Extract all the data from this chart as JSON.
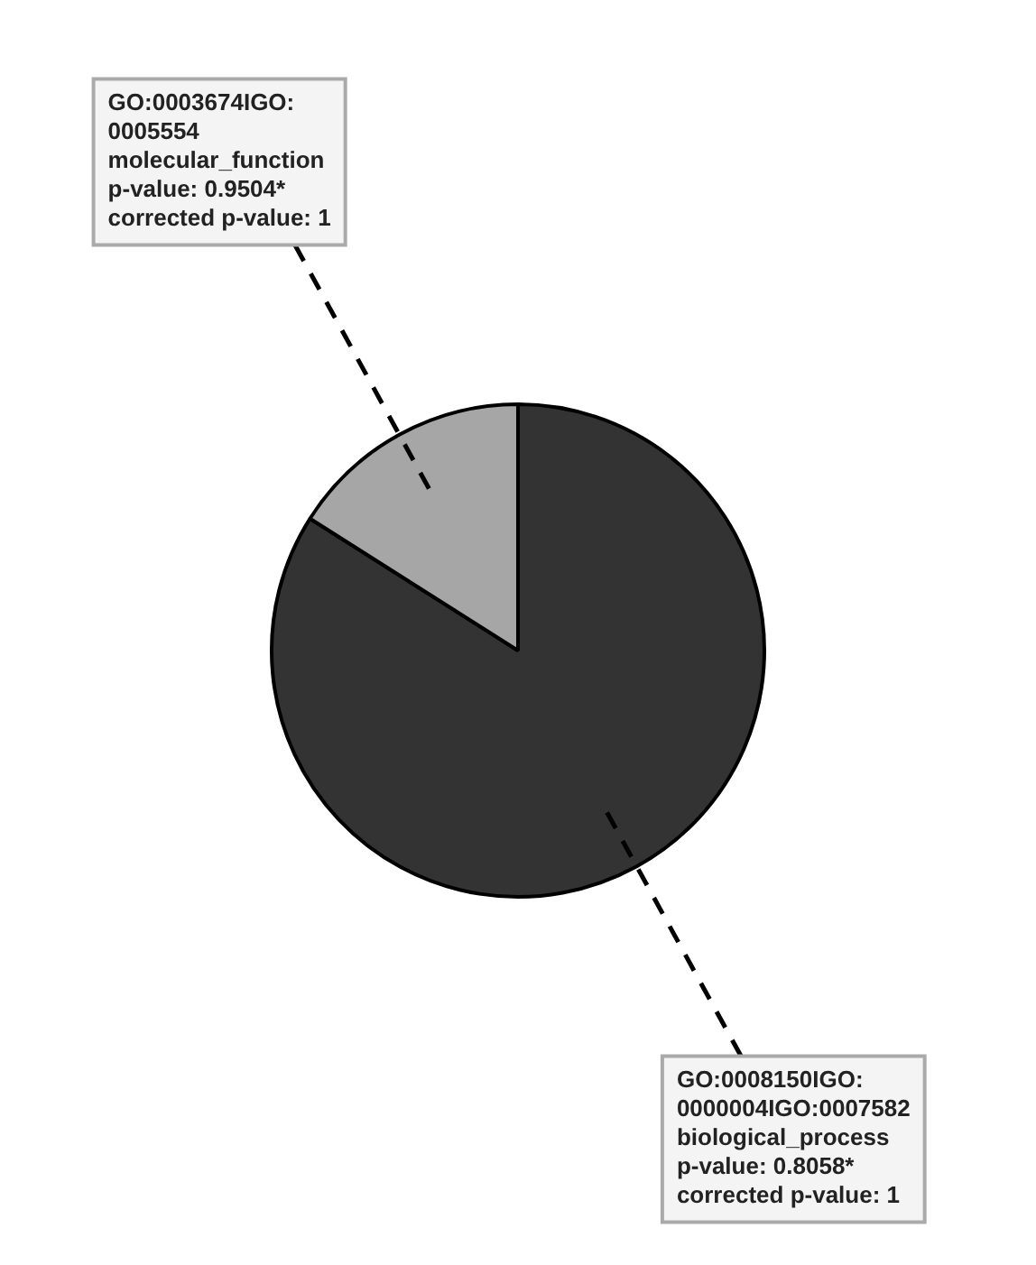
{
  "chart_data": {
    "type": "pie",
    "categories": [
      "GO:0008150IGO:\n0000004IGO:0007582\nbiological_process\np-value: 0.8058*\ncorrected p-value: 1",
      "GO:0003674IGO:\n0005554\nmolecular_function\np-value: 0.9504*\ncorrected p-value: 1"
    ],
    "values": [
      84,
      16
    ],
    "colors": [
      "#333333",
      "#a6a6a6"
    ],
    "legend": false
  }
}
